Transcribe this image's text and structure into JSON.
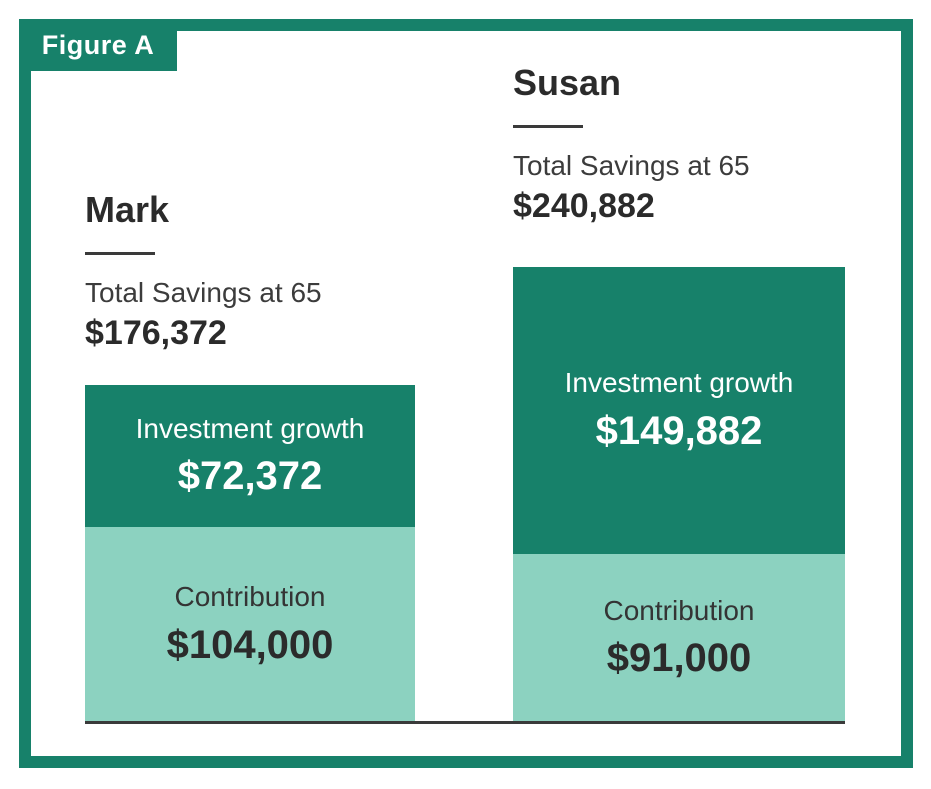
{
  "figure_label": "Figure A",
  "colors": {
    "dark_green": "#17816A",
    "light_green": "#8CD2C0",
    "text_dark": "#2b2b2b",
    "baseline": "#3a3a3a"
  },
  "people": [
    {
      "name": "Mark",
      "total_label": "Total Savings at 65",
      "total_value": "$176,372",
      "growth_label": "Investment growth",
      "growth_value": "$72,372",
      "contribution_label": "Contribution",
      "contribution_value": "$104,000"
    },
    {
      "name": "Susan",
      "total_label": "Total Savings at 65",
      "total_value": "$240,882",
      "growth_label": "Investment growth",
      "growth_value": "$149,882",
      "contribution_label": "Contribution",
      "contribution_value": "$91,000"
    }
  ],
  "chart_data": {
    "type": "bar",
    "stacked": true,
    "title": "Figure A",
    "categories": [
      "Mark",
      "Susan"
    ],
    "series": [
      {
        "name": "Contribution",
        "values": [
          104000,
          91000
        ],
        "color": "#8CD2C0"
      },
      {
        "name": "Investment growth",
        "values": [
          72372,
          149882
        ],
        "color": "#17816A"
      }
    ],
    "totals": {
      "label": "Total Savings at 65",
      "values": [
        176372,
        240882
      ]
    },
    "xlabel": "",
    "ylabel": "",
    "ylim": [
      0,
      240882
    ],
    "grid": false,
    "legend_position": "in-bar-labels"
  }
}
